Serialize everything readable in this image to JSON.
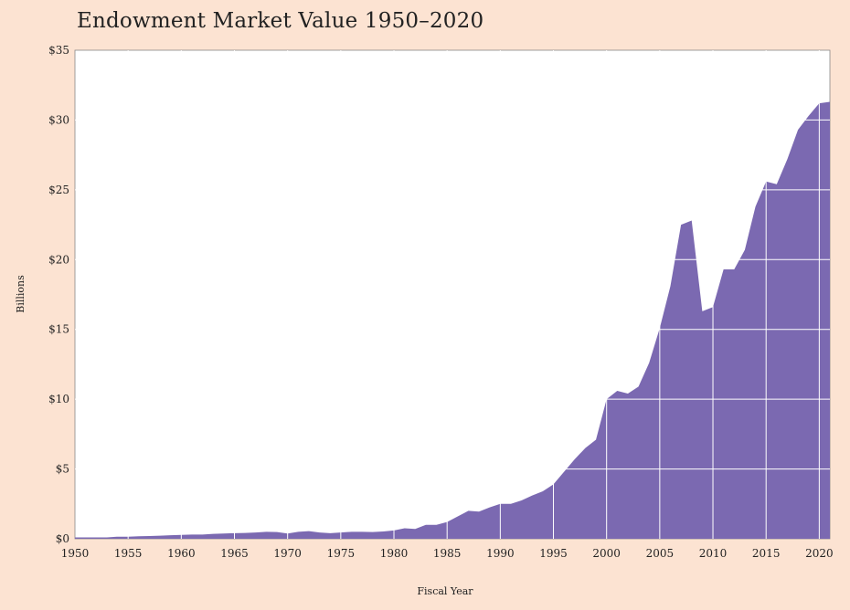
{
  "colors": {
    "background": "#fce3d2",
    "plot_background": "#ffffff",
    "area_fill": "#7b69b1",
    "gridline": "#ffffff",
    "text": "#222222"
  },
  "chart_data": {
    "type": "area",
    "title": "Endowment Market Value 1950–2020",
    "xlabel": "Fiscal Year",
    "ylabel": "Billions",
    "xlim": [
      1950,
      2021
    ],
    "ylim": [
      0,
      35
    ],
    "grid": true,
    "x_ticks": [
      1950,
      1955,
      1960,
      1965,
      1970,
      1975,
      1980,
      1985,
      1990,
      1995,
      2000,
      2005,
      2010,
      2015,
      2020
    ],
    "y_ticks": [
      0,
      5,
      10,
      15,
      20,
      25,
      30,
      35
    ],
    "y_tick_labels": [
      "$0",
      "$5",
      "$10",
      "$15",
      "$20",
      "$25",
      "$30",
      "$35"
    ],
    "series": [
      {
        "x": [
          1950,
          1951,
          1952,
          1953,
          1954,
          1955,
          1956,
          1957,
          1958,
          1959,
          1960,
          1961,
          1962,
          1963,
          1964,
          1965,
          1966,
          1967,
          1968,
          1969,
          1970,
          1971,
          1972,
          1973,
          1974,
          1975,
          1976,
          1977,
          1978,
          1979,
          1980,
          1981,
          1982,
          1983,
          1984,
          1985,
          1986,
          1987,
          1988,
          1989,
          1990,
          1991,
          1992,
          1993,
          1994,
          1995,
          1996,
          1997,
          1998,
          1999,
          2000,
          2001,
          2002,
          2003,
          2004,
          2005,
          2006,
          2007,
          2008,
          2009,
          2010,
          2011,
          2012,
          2013,
          2014,
          2015,
          2016,
          2017,
          2018,
          2019,
          2020,
          2021
        ],
        "values": [
          0.1,
          0.1,
          0.1,
          0.1,
          0.15,
          0.15,
          0.18,
          0.2,
          0.22,
          0.25,
          0.28,
          0.3,
          0.3,
          0.35,
          0.38,
          0.4,
          0.42,
          0.45,
          0.5,
          0.48,
          0.38,
          0.5,
          0.55,
          0.45,
          0.4,
          0.45,
          0.5,
          0.5,
          0.48,
          0.52,
          0.6,
          0.75,
          0.7,
          1.0,
          1.0,
          1.2,
          1.6,
          2.0,
          1.95,
          2.25,
          2.5,
          2.5,
          2.75,
          3.1,
          3.4,
          3.9,
          4.8,
          5.7,
          6.5,
          7.1,
          10.0,
          10.6,
          10.4,
          10.9,
          12.6,
          15.1,
          18.1,
          22.5,
          22.8,
          16.3,
          16.6,
          19.3,
          19.3,
          20.7,
          23.8,
          25.6,
          25.4,
          27.2,
          29.3,
          30.3,
          31.2,
          31.3
        ]
      }
    ]
  }
}
